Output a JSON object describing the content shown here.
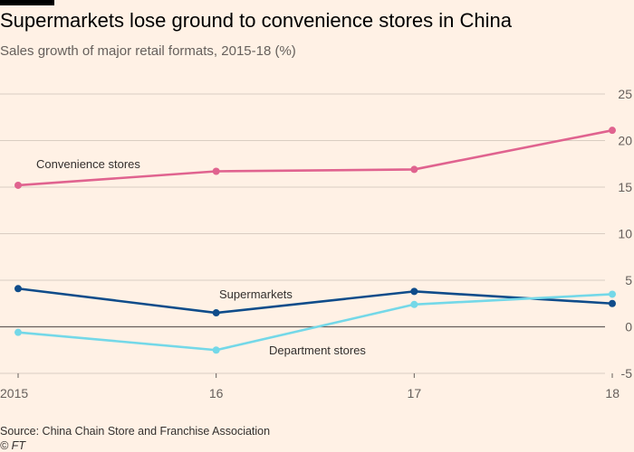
{
  "header": {
    "title": "Supermarkets lose ground to convenience stores in China",
    "subtitle": "Sales growth of major retail formats, 2015-18 (%)"
  },
  "footer": {
    "source": "Source: China Chain Store and Franchise Association",
    "copyright": "© FT"
  },
  "chart_data": {
    "type": "line",
    "x": [
      "2015",
      "16",
      "17",
      "18"
    ],
    "ylim": [
      -5,
      25
    ],
    "yticks": [
      -5,
      0,
      5,
      10,
      15,
      20,
      25
    ],
    "grid": true,
    "y_axis_side": "right",
    "series": [
      {
        "name": "Convenience stores",
        "values": [
          15.2,
          16.7,
          16.9,
          21.1
        ],
        "color": "#e0638f"
      },
      {
        "name": "Supermarkets",
        "values": [
          4.1,
          1.5,
          3.8,
          2.5
        ],
        "color": "#0f4c8a"
      },
      {
        "name": "Department stores",
        "values": [
          -0.6,
          -2.5,
          2.4,
          3.5
        ],
        "color": "#74d8e8"
      }
    ]
  }
}
